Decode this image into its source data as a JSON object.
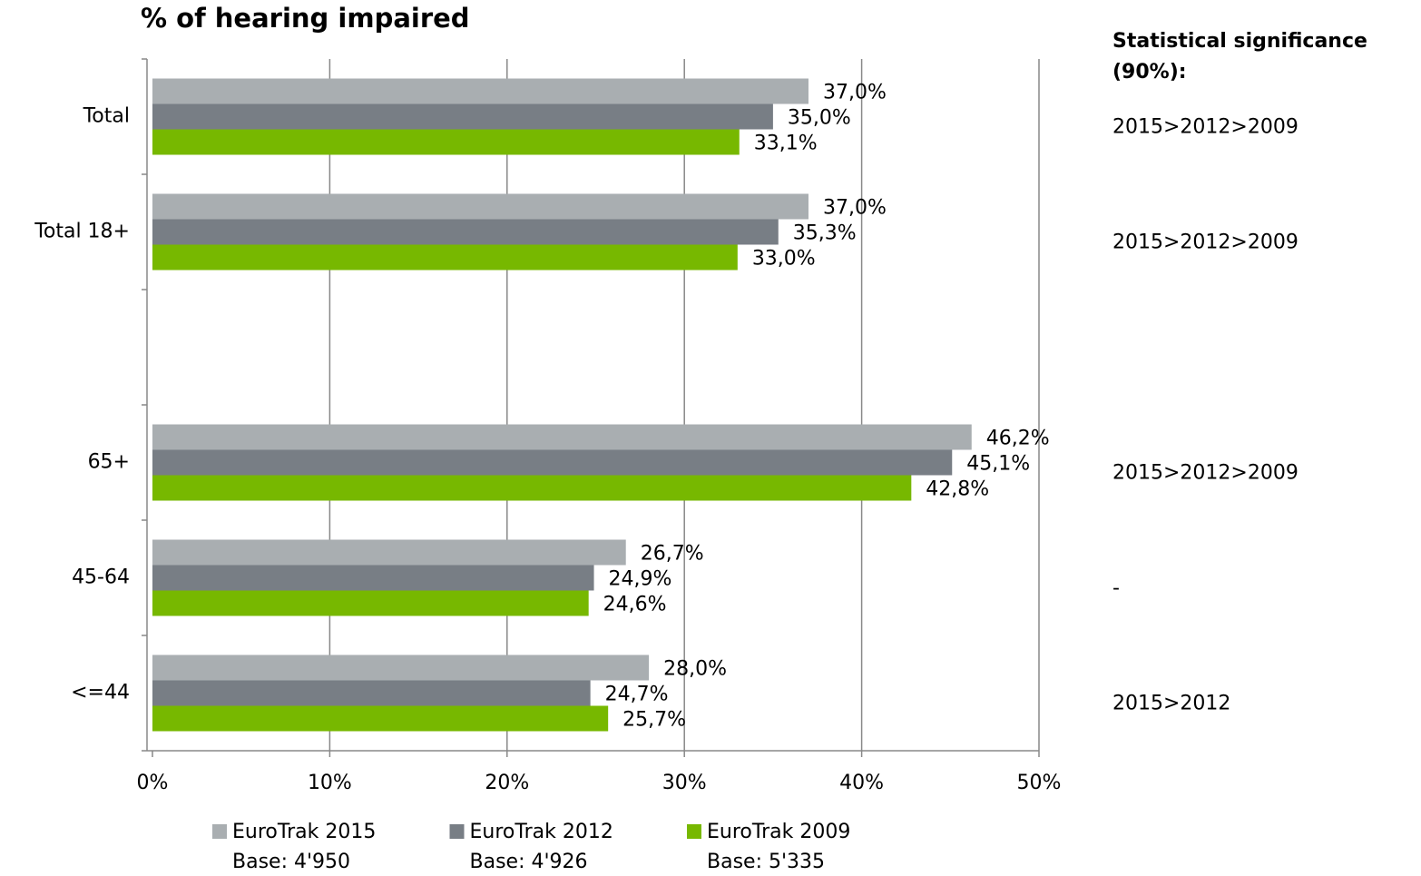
{
  "chart_data": {
    "type": "hbar",
    "title": "% of hearing impaired",
    "categories": [
      "Total",
      "Total 18+",
      null,
      "65+",
      "45-64",
      "<=44"
    ],
    "series": [
      {
        "name": "EuroTrak 2015",
        "base": "Base: 4'950",
        "color": "#a9aeb1",
        "values": [
          37.0,
          37.0,
          null,
          46.2,
          26.7,
          28.0
        ],
        "value_labels": [
          "37,0%",
          "37,0%",
          null,
          "46,2%",
          "26,7%",
          "28,0%"
        ]
      },
      {
        "name": "EuroTrak 2012",
        "base": "Base: 4'926",
        "color": "#787e85",
        "values": [
          35.0,
          35.3,
          null,
          45.1,
          24.9,
          24.7
        ],
        "value_labels": [
          "35,0%",
          "35,3%",
          null,
          "45,1%",
          "24,9%",
          "24,7%"
        ]
      },
      {
        "name": "EuroTrak 2009",
        "base": "Base: 5'335",
        "color": "#77b800",
        "values": [
          33.1,
          33.0,
          null,
          42.8,
          24.6,
          25.7
        ],
        "value_labels": [
          "33,1%",
          "33,0%",
          null,
          "42,8%",
          "24,6%",
          "25,7%"
        ]
      }
    ],
    "xlim": [
      0,
      50
    ],
    "xticks": [
      {
        "value": 0,
        "label": "0%"
      },
      {
        "value": 10,
        "label": "10%"
      },
      {
        "value": 20,
        "label": "20%"
      },
      {
        "value": 30,
        "label": "30%"
      },
      {
        "value": 40,
        "label": "40%"
      },
      {
        "value": 50,
        "label": "50%"
      }
    ],
    "grid": true,
    "legend": "bottom",
    "significance_title": [
      "Statistical significance",
      "(90%):"
    ],
    "significance": [
      "2015>2012>2009",
      "2015>2012>2009",
      null,
      "2015>2012>2009",
      "-",
      "2015>2012"
    ]
  }
}
